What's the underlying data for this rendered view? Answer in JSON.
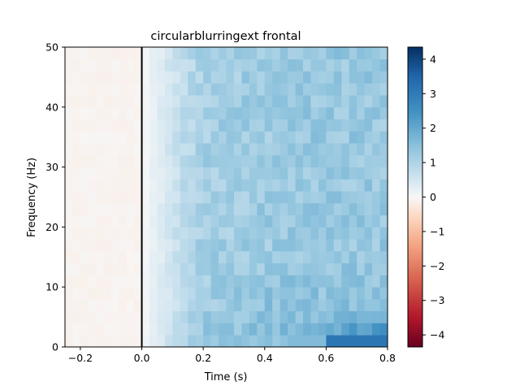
{
  "chart_data": {
    "type": "heatmap",
    "title": "circularblurringext frontal",
    "xlabel": "Time (s)",
    "ylabel": "Frequency (Hz)",
    "xlim": [
      -0.25,
      0.8
    ],
    "ylim": [
      0,
      50
    ],
    "xticks": [
      -0.2,
      0.0,
      0.2,
      0.4,
      0.6,
      0.8
    ],
    "xtick_labels": [
      "−0.2",
      "0.0",
      "0.2",
      "0.4",
      "0.6",
      "0.8"
    ],
    "yticks": [
      0,
      10,
      20,
      30,
      40,
      50
    ],
    "ytick_labels": [
      "0",
      "10",
      "20",
      "30",
      "40",
      "50"
    ],
    "event_line_x": 0.0,
    "colormap": "RdBu_r",
    "colorbar": {
      "vmin": -4.35,
      "vmax": 4.35,
      "ticks": [
        -4,
        -3,
        -2,
        -1,
        0,
        1,
        2,
        3,
        4
      ],
      "tick_labels": [
        "−4",
        "−3",
        "−2",
        "−1",
        "0",
        "1",
        "2",
        "3",
        "4"
      ]
    },
    "time_bin_width": 0.025,
    "freq_bin_width": 2
  }
}
